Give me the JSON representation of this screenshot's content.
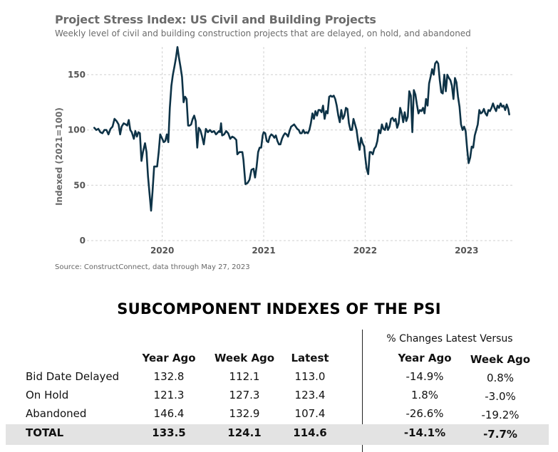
{
  "chart_data": {
    "type": "line",
    "title": "Project Stress Index: US Civil and Building Projects",
    "subtitle": "Weekly level of civil and building construction projects that are delayed, on hold, and abandoned",
    "ylabel": "Indexed (2021=100)",
    "xlabel": "",
    "source": "Source: ConstructConnect, data through May 27, 2023",
    "ylim": [
      0,
      175
    ],
    "yticks": [
      0,
      50,
      100,
      150
    ],
    "xlim": [
      2019.3,
      2023.43
    ],
    "xticks": [
      2020,
      2021,
      2022,
      2023
    ],
    "xtick_labels": [
      "2020",
      "2021",
      "2022",
      "2023"
    ],
    "grid": true,
    "line_color": "#0e3347",
    "series": [
      {
        "points": [
          [
            2019.33,
            102
          ],
          [
            2019.35,
            100
          ],
          [
            2019.37,
            101
          ],
          [
            2019.39,
            98
          ],
          [
            2019.41,
            97
          ],
          [
            2019.43,
            100
          ],
          [
            2019.45,
            100
          ],
          [
            2019.47,
            96
          ],
          [
            2019.49,
            101
          ],
          [
            2019.51,
            103
          ],
          [
            2019.53,
            110
          ],
          [
            2019.55,
            108
          ],
          [
            2019.57,
            105
          ],
          [
            2019.585,
            96
          ],
          [
            2019.6,
            103
          ],
          [
            2019.62,
            106
          ],
          [
            2019.64,
            105
          ],
          [
            2019.655,
            104
          ],
          [
            2019.67,
            109
          ],
          [
            2019.685,
            100
          ],
          [
            2019.7,
            98
          ],
          [
            2019.72,
            92
          ],
          [
            2019.735,
            99
          ],
          [
            2019.75,
            94
          ],
          [
            2019.765,
            98
          ],
          [
            2019.78,
            97
          ],
          [
            2019.795,
            72
          ],
          [
            2019.81,
            80
          ],
          [
            2019.83,
            88
          ],
          [
            2019.845,
            80
          ],
          [
            2019.86,
            58
          ],
          [
            2019.875,
            42
          ],
          [
            2019.89,
            27
          ],
          [
            2019.905,
            45
          ],
          [
            2019.92,
            67
          ],
          [
            2019.935,
            67
          ],
          [
            2019.95,
            67
          ],
          [
            2019.965,
            80
          ],
          [
            2019.98,
            96
          ],
          [
            2020.0,
            92
          ],
          [
            2020.015,
            89
          ],
          [
            2020.03,
            90
          ],
          [
            2020.045,
            96
          ],
          [
            2020.06,
            89
          ],
          [
            2020.075,
            120
          ],
          [
            2020.09,
            140
          ],
          [
            2020.105,
            150
          ],
          [
            2020.12,
            157
          ],
          [
            2020.135,
            165
          ],
          [
            2020.15,
            175
          ],
          [
            2020.165,
            165
          ],
          [
            2020.18,
            157
          ],
          [
            2020.195,
            148
          ],
          [
            2020.21,
            125
          ],
          [
            2020.225,
            130
          ],
          [
            2020.24,
            128
          ],
          [
            2020.255,
            104
          ],
          [
            2020.27,
            104
          ],
          [
            2020.285,
            105
          ],
          [
            2020.3,
            110
          ],
          [
            2020.315,
            113
          ],
          [
            2020.33,
            108
          ],
          [
            2020.345,
            84
          ],
          [
            2020.36,
            102
          ],
          [
            2020.375,
            100
          ],
          [
            2020.39,
            95
          ],
          [
            2020.41,
            87
          ],
          [
            2020.43,
            101
          ],
          [
            2020.45,
            98
          ],
          [
            2020.47,
            100
          ],
          [
            2020.49,
            98
          ],
          [
            2020.51,
            99
          ],
          [
            2020.53,
            96
          ],
          [
            2020.55,
            98
          ],
          [
            2020.56,
            99
          ],
          [
            2020.57,
            98
          ],
          [
            2020.58,
            106
          ],
          [
            2020.59,
            95
          ],
          [
            2020.61,
            96
          ],
          [
            2020.63,
            99
          ],
          [
            2020.65,
            97
          ],
          [
            2020.67,
            92
          ],
          [
            2020.69,
            94
          ],
          [
            2020.71,
            93
          ],
          [
            2020.73,
            91
          ],
          [
            2020.74,
            78
          ],
          [
            2020.76,
            80
          ],
          [
            2020.78,
            80
          ],
          [
            2020.79,
            80
          ],
          [
            2020.8,
            73
          ],
          [
            2020.82,
            51
          ],
          [
            2020.84,
            52
          ],
          [
            2020.86,
            55
          ],
          [
            2020.88,
            64
          ],
          [
            2020.9,
            65
          ],
          [
            2020.915,
            57
          ],
          [
            2020.93,
            67
          ],
          [
            2020.945,
            80
          ],
          [
            2020.96,
            84
          ],
          [
            2020.975,
            84
          ],
          [
            2020.99,
            95
          ],
          [
            2021.0,
            98
          ],
          [
            2021.015,
            97
          ],
          [
            2021.03,
            90
          ],
          [
            2021.045,
            89
          ],
          [
            2021.06,
            94
          ],
          [
            2021.075,
            96
          ],
          [
            2021.09,
            95
          ],
          [
            2021.105,
            93
          ],
          [
            2021.12,
            95
          ],
          [
            2021.135,
            90
          ],
          [
            2021.15,
            87
          ],
          [
            2021.165,
            87
          ],
          [
            2021.18,
            92
          ],
          [
            2021.195,
            95
          ],
          [
            2021.21,
            97
          ],
          [
            2021.225,
            96
          ],
          [
            2021.24,
            94
          ],
          [
            2021.255,
            99
          ],
          [
            2021.27,
            103
          ],
          [
            2021.285,
            104
          ],
          [
            2021.3,
            105
          ],
          [
            2021.315,
            103
          ],
          [
            2021.33,
            101
          ],
          [
            2021.345,
            100
          ],
          [
            2021.36,
            97
          ],
          [
            2021.375,
            97
          ],
          [
            2021.39,
            100
          ],
          [
            2021.405,
            97
          ],
          [
            2021.42,
            98
          ],
          [
            2021.435,
            97
          ],
          [
            2021.45,
            100
          ],
          [
            2021.465,
            106
          ],
          [
            2021.48,
            115
          ],
          [
            2021.495,
            110
          ],
          [
            2021.51,
            117
          ],
          [
            2021.525,
            113
          ],
          [
            2021.54,
            118
          ],
          [
            2021.555,
            118
          ],
          [
            2021.57,
            116
          ],
          [
            2021.585,
            122
          ],
          [
            2021.6,
            110
          ],
          [
            2021.615,
            117
          ],
          [
            2021.63,
            115
          ],
          [
            2021.645,
            130
          ],
          [
            2021.66,
            131
          ],
          [
            2021.675,
            130
          ],
          [
            2021.69,
            131
          ],
          [
            2021.705,
            128
          ],
          [
            2021.72,
            122
          ],
          [
            2021.735,
            113
          ],
          [
            2021.75,
            107
          ],
          [
            2021.765,
            118
          ],
          [
            2021.78,
            110
          ],
          [
            2021.795,
            113
          ],
          [
            2021.81,
            120
          ],
          [
            2021.825,
            119
          ],
          [
            2021.84,
            106
          ],
          [
            2021.855,
            100
          ],
          [
            2021.87,
            100
          ],
          [
            2021.885,
            110
          ],
          [
            2021.9,
            105
          ],
          [
            2021.915,
            100
          ],
          [
            2021.93,
            90
          ],
          [
            2021.945,
            82
          ],
          [
            2021.96,
            93
          ],
          [
            2021.975,
            88
          ],
          [
            2021.99,
            85
          ],
          [
            2022.0,
            76
          ],
          [
            2022.015,
            65
          ],
          [
            2022.03,
            60
          ],
          [
            2022.045,
            80
          ],
          [
            2022.06,
            80
          ],
          [
            2022.075,
            78
          ],
          [
            2022.09,
            83
          ],
          [
            2022.105,
            85
          ],
          [
            2022.12,
            90
          ],
          [
            2022.135,
            100
          ],
          [
            2022.15,
            97
          ],
          [
            2022.165,
            105
          ],
          [
            2022.18,
            101
          ],
          [
            2022.195,
            100
          ],
          [
            2022.21,
            106
          ],
          [
            2022.225,
            100
          ],
          [
            2022.24,
            103
          ],
          [
            2022.255,
            110
          ],
          [
            2022.27,
            111
          ],
          [
            2022.285,
            108
          ],
          [
            2022.3,
            110
          ],
          [
            2022.315,
            102
          ],
          [
            2022.33,
            106
          ],
          [
            2022.345,
            120
          ],
          [
            2022.36,
            115
          ],
          [
            2022.375,
            107
          ],
          [
            2022.39,
            116
          ],
          [
            2022.405,
            108
          ],
          [
            2022.42,
            112
          ],
          [
            2022.435,
            135
          ],
          [
            2022.45,
            131
          ],
          [
            2022.465,
            98
          ],
          [
            2022.48,
            136
          ],
          [
            2022.495,
            132
          ],
          [
            2022.51,
            123
          ],
          [
            2022.525,
            115
          ],
          [
            2022.54,
            118
          ],
          [
            2022.555,
            117
          ],
          [
            2022.57,
            120
          ],
          [
            2022.585,
            115
          ],
          [
            2022.6,
            128
          ],
          [
            2022.615,
            122
          ],
          [
            2022.63,
            142
          ],
          [
            2022.645,
            148
          ],
          [
            2022.66,
            155
          ],
          [
            2022.675,
            150
          ],
          [
            2022.69,
            160
          ],
          [
            2022.705,
            162
          ],
          [
            2022.72,
            160
          ],
          [
            2022.735,
            145
          ],
          [
            2022.75,
            134
          ],
          [
            2022.765,
            133
          ],
          [
            2022.78,
            150
          ],
          [
            2022.795,
            135
          ],
          [
            2022.81,
            150
          ],
          [
            2022.825,
            147
          ],
          [
            2022.84,
            145
          ],
          [
            2022.855,
            140
          ],
          [
            2022.87,
            128
          ],
          [
            2022.885,
            147
          ],
          [
            2022.9,
            143
          ],
          [
            2022.915,
            130
          ],
          [
            2022.93,
            121
          ],
          [
            2022.945,
            105
          ],
          [
            2022.96,
            100
          ],
          [
            2022.975,
            103
          ],
          [
            2022.99,
            99
          ],
          [
            2023.005,
            83
          ],
          [
            2023.02,
            70
          ],
          [
            2023.035,
            75
          ],
          [
            2023.05,
            85
          ],
          [
            2023.065,
            84
          ],
          [
            2023.08,
            95
          ],
          [
            2023.095,
            100
          ],
          [
            2023.11,
            105
          ],
          [
            2023.125,
            118
          ],
          [
            2023.14,
            115
          ],
          [
            2023.155,
            116
          ],
          [
            2023.17,
            119
          ],
          [
            2023.185,
            115
          ],
          [
            2023.2,
            113
          ],
          [
            2023.215,
            118
          ],
          [
            2023.23,
            117
          ],
          [
            2023.245,
            120
          ],
          [
            2023.26,
            124
          ],
          [
            2023.275,
            120
          ],
          [
            2023.29,
            117
          ],
          [
            2023.305,
            122
          ],
          [
            2023.32,
            120
          ],
          [
            2023.335,
            124
          ],
          [
            2023.35,
            121
          ],
          [
            2023.365,
            122
          ],
          [
            2023.38,
            118
          ],
          [
            2023.395,
            123
          ],
          [
            2023.41,
            119
          ],
          [
            2023.42,
            114
          ]
        ]
      }
    ]
  },
  "table": {
    "heading": "SUBCOMPONENT INDEXES OF THE PSI",
    "pct_caption": "% Changes Latest Versus",
    "columns": [
      "Year Ago",
      "Week Ago",
      "Latest"
    ],
    "pct_columns": [
      "Year Ago",
      "Week Ago"
    ],
    "rows": [
      {
        "label": "Bid Date Delayed",
        "values": [
          "132.8",
          "112.1",
          "113.0"
        ],
        "pct": [
          "-14.9%",
          "0.8%"
        ]
      },
      {
        "label": "On Hold",
        "values": [
          "121.3",
          "127.3",
          "123.4"
        ],
        "pct": [
          "1.8%",
          "-3.0%"
        ]
      },
      {
        "label": "Abandoned",
        "values": [
          "146.4",
          "132.9",
          "107.4"
        ],
        "pct": [
          "-26.6%",
          "-19.2%"
        ]
      }
    ],
    "total": {
      "label": "TOTAL",
      "values": [
        "133.5",
        "124.1",
        "114.6"
      ],
      "pct": [
        "-14.1%",
        "-7.7%"
      ]
    }
  }
}
